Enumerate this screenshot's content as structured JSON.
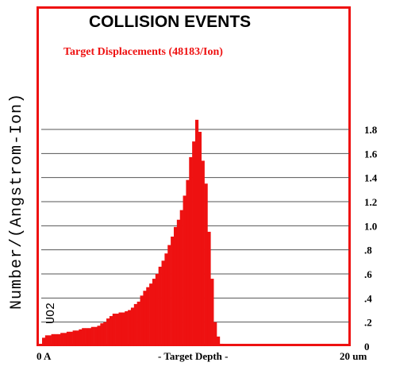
{
  "chart_data": {
    "type": "bar",
    "title": "COLLISION EVENTS",
    "subtitle": "Target Displacements (48183/Ion)",
    "ylabel": "Number/(Angstrom-Ion)",
    "xlabel": "- Target Depth -",
    "x_start_label": "0 A",
    "x_end_label": "20 um",
    "material_label": "UO2",
    "ylim": [
      0,
      1.92
    ],
    "yticks": [
      {
        "value": 0,
        "label": "0"
      },
      {
        "value": 0.2,
        "label": ".2"
      },
      {
        "value": 0.4,
        "label": ".4"
      },
      {
        "value": 0.6,
        "label": ".6"
      },
      {
        "value": 0.8,
        "label": ".8"
      },
      {
        "value": 1.0,
        "label": "1.0"
      },
      {
        "value": 1.2,
        "label": "1.2"
      },
      {
        "value": 1.4,
        "label": "1.4"
      },
      {
        "value": 1.6,
        "label": "1.6"
      },
      {
        "value": 1.8,
        "label": "1.8"
      }
    ],
    "grid": true,
    "bar_color": "#ee1111",
    "frame_color": "#ee1111",
    "xlim": [
      0,
      20
    ],
    "x_unit": "um",
    "bin_width": 0.2,
    "values": [
      0.07,
      0.09,
      0.09,
      0.1,
      0.1,
      0.1,
      0.11,
      0.11,
      0.12,
      0.12,
      0.13,
      0.13,
      0.14,
      0.15,
      0.15,
      0.15,
      0.16,
      0.16,
      0.17,
      0.19,
      0.2,
      0.23,
      0.25,
      0.27,
      0.27,
      0.28,
      0.28,
      0.29,
      0.3,
      0.32,
      0.35,
      0.37,
      0.42,
      0.46,
      0.49,
      0.52,
      0.56,
      0.6,
      0.66,
      0.71,
      0.77,
      0.84,
      0.91,
      0.99,
      1.05,
      1.13,
      1.25,
      1.38,
      1.57,
      1.7,
      1.88,
      1.78,
      1.54,
      1.35,
      0.95,
      0.56,
      0.2,
      0.08,
      0.02,
      0.0,
      0.0,
      0.0,
      0.0,
      0.0,
      0.0,
      0.0,
      0.0,
      0.0,
      0.0,
      0.0,
      0.0,
      0.0,
      0.0,
      0.0,
      0.0,
      0.0,
      0.0,
      0.0,
      0.0,
      0.0,
      0.0,
      0.0,
      0.0,
      0.0,
      0.0,
      0.0,
      0.0,
      0.0,
      0.0,
      0.0,
      0.0,
      0.0,
      0.0,
      0.0,
      0.0,
      0.0,
      0.0,
      0.0,
      0.0,
      0.0
    ]
  }
}
